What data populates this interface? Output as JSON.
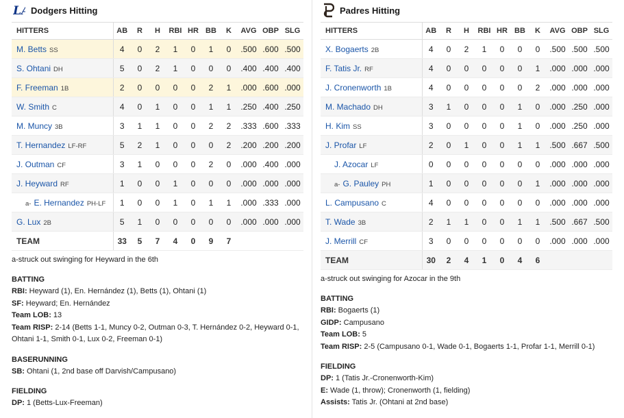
{
  "columns": [
    "AB",
    "R",
    "H",
    "RBI",
    "HR",
    "BB",
    "K",
    "AVG",
    "OBP",
    "SLG"
  ],
  "hitters_header": "HITTERS",
  "team_label": "TEAM",
  "away": {
    "title": "Dodgers Hitting",
    "logo_icon": "dodgers-la-logo-icon",
    "players": [
      {
        "name": "M. Betts",
        "pos": "SS",
        "sub": "",
        "stats": [
          "4",
          "0",
          "2",
          "1",
          "0",
          "1",
          "0",
          ".500",
          ".600",
          ".500"
        ],
        "highlight": true
      },
      {
        "name": "S. Ohtani",
        "pos": "DH",
        "sub": "",
        "stats": [
          "5",
          "0",
          "2",
          "1",
          "0",
          "0",
          "0",
          ".400",
          ".400",
          ".400"
        ],
        "highlight": false
      },
      {
        "name": "F. Freeman",
        "pos": "1B",
        "sub": "",
        "stats": [
          "2",
          "0",
          "0",
          "0",
          "0",
          "2",
          "1",
          ".000",
          ".600",
          ".000"
        ],
        "highlight": true
      },
      {
        "name": "W. Smith",
        "pos": "C",
        "sub": "",
        "stats": [
          "4",
          "0",
          "1",
          "0",
          "0",
          "1",
          "1",
          ".250",
          ".400",
          ".250"
        ],
        "highlight": false
      },
      {
        "name": "M. Muncy",
        "pos": "3B",
        "sub": "",
        "stats": [
          "3",
          "1",
          "1",
          "0",
          "0",
          "2",
          "2",
          ".333",
          ".600",
          ".333"
        ],
        "highlight": false
      },
      {
        "name": "T. Hernandez",
        "pos": "LF-RF",
        "sub": "",
        "stats": [
          "5",
          "2",
          "1",
          "0",
          "0",
          "0",
          "2",
          ".200",
          ".200",
          ".200"
        ],
        "highlight": false
      },
      {
        "name": "J. Outman",
        "pos": "CF",
        "sub": "",
        "stats": [
          "3",
          "1",
          "0",
          "0",
          "0",
          "2",
          "0",
          ".000",
          ".400",
          ".000"
        ],
        "highlight": false
      },
      {
        "name": "J. Heyward",
        "pos": "RF",
        "sub": "",
        "stats": [
          "1",
          "0",
          "0",
          "1",
          "0",
          "0",
          "0",
          ".000",
          ".000",
          ".000"
        ],
        "highlight": false
      },
      {
        "name": "E. Hernandez",
        "pos": "PH-LF",
        "sub": "a-",
        "stats": [
          "1",
          "0",
          "0",
          "1",
          "0",
          "1",
          "1",
          ".000",
          ".333",
          ".000"
        ],
        "highlight": false
      },
      {
        "name": "G. Lux",
        "pos": "2B",
        "sub": "",
        "stats": [
          "5",
          "1",
          "0",
          "0",
          "0",
          "0",
          "0",
          ".000",
          ".000",
          ".000"
        ],
        "highlight": false
      }
    ],
    "totals": [
      "33",
      "5",
      "7",
      "4",
      "0",
      "9",
      "7",
      "",
      "",
      ""
    ],
    "footnote": "a-struck out swinging for Heyward in the 6th",
    "sections": [
      {
        "title": "BATTING",
        "lines": [
          {
            "label": "RBI:",
            "text": " Heyward (1), En. Hernández (1), Betts (1), Ohtani (1)"
          },
          {
            "label": "SF:",
            "text": " Heyward; En. Hernández"
          },
          {
            "label": "Team LOB:",
            "text": " 13"
          },
          {
            "label": "Team RISP:",
            "text": " 2-14 (Betts 1-1, Muncy 0-2, Outman 0-3, T. Hernández 0-2, Heyward 0-1, Ohtani 1-1, Smith 0-1, Lux 0-2, Freeman 0-1)"
          }
        ]
      },
      {
        "title": "BASERUNNING",
        "lines": [
          {
            "label": "SB:",
            "text": " Ohtani (1, 2nd base off Darvish/Campusano)"
          }
        ]
      },
      {
        "title": "FIELDING",
        "lines": [
          {
            "label": "DP:",
            "text": " 1 (Betts-Lux-Freeman)"
          }
        ]
      }
    ]
  },
  "home": {
    "title": "Padres Hitting",
    "logo_icon": "padres-sd-logo-icon",
    "players": [
      {
        "name": "X. Bogaerts",
        "pos": "2B",
        "sub": "",
        "stats": [
          "4",
          "0",
          "2",
          "1",
          "0",
          "0",
          "0",
          ".500",
          ".500",
          ".500"
        ],
        "highlight": false
      },
      {
        "name": "F. Tatis Jr.",
        "pos": "RF",
        "sub": "",
        "stats": [
          "4",
          "0",
          "0",
          "0",
          "0",
          "0",
          "1",
          ".000",
          ".000",
          ".000"
        ],
        "highlight": false
      },
      {
        "name": "J. Cronenworth",
        "pos": "1B",
        "sub": "",
        "stats": [
          "4",
          "0",
          "0",
          "0",
          "0",
          "0",
          "2",
          ".000",
          ".000",
          ".000"
        ],
        "highlight": false
      },
      {
        "name": "M. Machado",
        "pos": "DH",
        "sub": "",
        "stats": [
          "3",
          "1",
          "0",
          "0",
          "0",
          "1",
          "0",
          ".000",
          ".250",
          ".000"
        ],
        "highlight": false
      },
      {
        "name": "H. Kim",
        "pos": "SS",
        "sub": "",
        "stats": [
          "3",
          "0",
          "0",
          "0",
          "0",
          "1",
          "0",
          ".000",
          ".250",
          ".000"
        ],
        "highlight": false
      },
      {
        "name": "J. Profar",
        "pos": "LF",
        "sub": "",
        "stats": [
          "2",
          "0",
          "1",
          "0",
          "0",
          "1",
          "1",
          ".500",
          ".667",
          ".500"
        ],
        "highlight": false
      },
      {
        "name": "J. Azocar",
        "pos": "LF",
        "sub": "",
        "indent": true,
        "stats": [
          "0",
          "0",
          "0",
          "0",
          "0",
          "0",
          "0",
          ".000",
          ".000",
          ".000"
        ],
        "highlight": false
      },
      {
        "name": "G. Pauley",
        "pos": "PH",
        "sub": "a-",
        "stats": [
          "1",
          "0",
          "0",
          "0",
          "0",
          "0",
          "1",
          ".000",
          ".000",
          ".000"
        ],
        "highlight": false
      },
      {
        "name": "L. Campusano",
        "pos": "C",
        "sub": "",
        "stats": [
          "4",
          "0",
          "0",
          "0",
          "0",
          "0",
          "0",
          ".000",
          ".000",
          ".000"
        ],
        "highlight": false
      },
      {
        "name": "T. Wade",
        "pos": "3B",
        "sub": "",
        "stats": [
          "2",
          "1",
          "1",
          "0",
          "0",
          "1",
          "1",
          ".500",
          ".667",
          ".500"
        ],
        "highlight": false
      },
      {
        "name": "J. Merrill",
        "pos": "CF",
        "sub": "",
        "stats": [
          "3",
          "0",
          "0",
          "0",
          "0",
          "0",
          "0",
          ".000",
          ".000",
          ".000"
        ],
        "highlight": false
      }
    ],
    "totals": [
      "30",
      "2",
      "4",
      "1",
      "0",
      "4",
      "6",
      "",
      "",
      ""
    ],
    "footnote": "a-struck out swinging for Azocar in the 9th",
    "sections": [
      {
        "title": "BATTING",
        "lines": [
          {
            "label": "RBI:",
            "text": " Bogaerts (1)"
          },
          {
            "label": "GIDP:",
            "text": " Campusano"
          },
          {
            "label": "Team LOB:",
            "text": " 5"
          },
          {
            "label": "Team RISP:",
            "text": " 2-5 (Campusano 0-1, Wade 0-1, Bogaerts 1-1, Profar 1-1, Merrill 0-1)"
          }
        ]
      },
      {
        "title": "FIELDING",
        "lines": [
          {
            "label": "DP:",
            "text": " 1 (Tatis Jr.-Cronenworth-Kim)"
          },
          {
            "label": "E:",
            "text": " Wade (1, throw); Cronenworth (1, fielding)"
          },
          {
            "label": "Assists:",
            "text": " Tatis Jr. (Ohtani at 2nd base)"
          }
        ]
      }
    ]
  },
  "colors": {
    "link": "#1a55a8",
    "highlight_row": "#fdf6dc",
    "alt_row": "#f5f5f5",
    "dodgers_blue": "#0e3386",
    "padres_brown": "#2f241d"
  }
}
